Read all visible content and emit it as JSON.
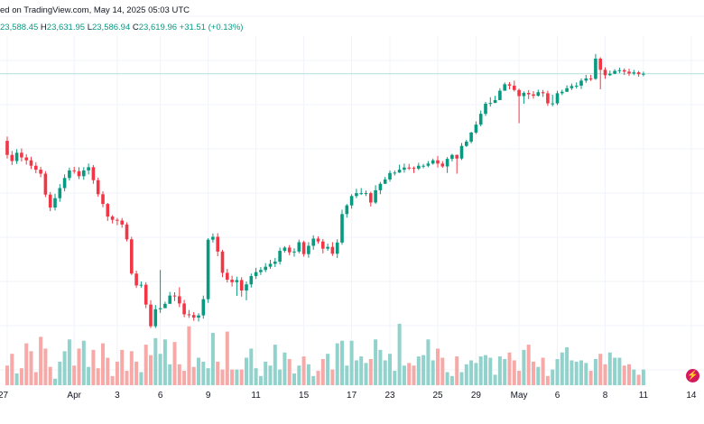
{
  "header": {
    "published": "ed on TradingView.com, May 14, 2025 05:03 UTC",
    "open_key": "",
    "open": "23,588.45",
    "high_key": "H",
    "high": "23,631.95",
    "low_key": "L",
    "low": "23,586.94",
    "close_key": "C",
    "close": "23,619.96",
    "change": "+31.51 (+0.13%)"
  },
  "colors": {
    "up": "#089981",
    "down": "#f23645",
    "up_volume": "#92d2cc",
    "down_volume": "#f7a9a7",
    "last_price_line": "#b2dfdb",
    "grid": "#f0f3fa"
  },
  "icons": {
    "fullscreen": "lightning-icon"
  },
  "chart_data": {
    "type": "candlestick",
    "grid": true,
    "x_ticks": [
      "27",
      "Apr",
      "3",
      "6",
      "9",
      "11",
      "15",
      "17",
      "23",
      "25",
      "29",
      "May",
      "6",
      "8",
      "11",
      "14"
    ],
    "candles": [
      [
        17.9,
        14.0,
        19.1,
        13.0
      ],
      [
        14.0,
        12.3,
        15.1,
        11.2
      ],
      [
        12.3,
        14.6,
        15.6,
        11.5
      ],
      [
        14.6,
        13.3,
        15.8,
        12.2
      ],
      [
        13.3,
        12.5,
        14.2,
        11.3
      ],
      [
        12.5,
        11.0,
        13.5,
        10.1
      ],
      [
        11.0,
        9.9,
        12.0,
        8.9
      ],
      [
        9.9,
        8.8,
        10.7,
        7.8
      ],
      [
        8.8,
        3.0,
        9.5,
        2.3
      ],
      [
        3.0,
        -0.6,
        3.7,
        -1.6
      ],
      [
        -0.6,
        2.0,
        3.2,
        -1.4
      ],
      [
        2.0,
        4.8,
        5.9,
        1.0
      ],
      [
        4.8,
        7.6,
        8.6,
        3.9
      ],
      [
        7.6,
        9.7,
        10.5,
        6.9
      ],
      [
        9.7,
        9.5,
        10.7,
        8.8
      ],
      [
        9.5,
        8.1,
        10.6,
        7.3
      ],
      [
        8.1,
        9.7,
        10.6,
        7.1
      ],
      [
        9.7,
        10.6,
        11.6,
        8.6
      ],
      [
        10.6,
        7.0,
        11.2,
        6.0
      ],
      [
        7.0,
        3.1,
        7.7,
        2.4
      ],
      [
        3.1,
        0.4,
        3.9,
        -0.5
      ],
      [
        0.4,
        -3.1,
        0.7,
        -4.3
      ],
      [
        -3.1,
        -4.0,
        -2.7,
        -5.0
      ],
      [
        -4.0,
        -4.2,
        -3.5,
        -5.5
      ],
      [
        -4.2,
        -5.3,
        -3.5,
        -6.2
      ],
      [
        -5.3,
        -9.4,
        -4.7,
        -10.0
      ],
      [
        -9.4,
        -18.9,
        -8.7,
        -19.3
      ],
      [
        -18.9,
        -22.2,
        -18.1,
        -22.9
      ],
      [
        -22.2,
        -22.0,
        -21.1,
        -22.8
      ],
      [
        -22.0,
        -27.5,
        -21.3,
        -28.5
      ],
      [
        -27.5,
        -33.5,
        -26.3,
        -34.0
      ],
      [
        -33.5,
        -28.8,
        -27.6,
        -34.0
      ],
      [
        -28.8,
        -28.5,
        -17.9,
        -29.8
      ],
      [
        -28.5,
        -27.3,
        -26.7,
        -28.1
      ],
      [
        -27.3,
        -25.0,
        -24.0,
        -26.3
      ],
      [
        -25.0,
        -25.2,
        -24.1,
        -26.5
      ],
      [
        -25.2,
        -27.2,
        -22.7,
        -28.2
      ],
      [
        -27.2,
        -30.2,
        -26.2,
        -31.0
      ],
      [
        -30.2,
        -30.4,
        -29.0,
        -31.2
      ],
      [
        -30.4,
        -31.1,
        -29.6,
        -32.0
      ],
      [
        -31.1,
        -30.5,
        -29.9,
        -32.2
      ],
      [
        -30.5,
        -26.0,
        -25.0,
        -31.4
      ],
      [
        -26.0,
        -9.5,
        -9.1,
        -27.0
      ],
      [
        -9.5,
        -8.7,
        -7.8,
        -10.3
      ],
      [
        -8.7,
        -12.8,
        -7.7,
        -14.1
      ],
      [
        -12.8,
        -18.7,
        -12.3,
        -19.9
      ],
      [
        -18.7,
        -20.6,
        -17.6,
        -21.4
      ],
      [
        -20.6,
        -21.3,
        -19.5,
        -22.5
      ],
      [
        -21.3,
        -20.7,
        -19.8,
        -25.1
      ],
      [
        -20.7,
        -23.6,
        -19.9,
        -25.3
      ],
      [
        -23.6,
        -21.9,
        -21.1,
        -26.3
      ],
      [
        -21.9,
        -19.6,
        -18.9,
        -22.8
      ],
      [
        -19.6,
        -18.5,
        -17.3,
        -20.4
      ],
      [
        -18.5,
        -17.9,
        -17.1,
        -19.3
      ],
      [
        -17.9,
        -17.0,
        -16.0,
        -18.5
      ],
      [
        -17.0,
        -16.2,
        -15.1,
        -17.6
      ],
      [
        -16.2,
        -15.6,
        -14.6,
        -17.1
      ],
      [
        -15.6,
        -12.6,
        -11.7,
        -16.4
      ],
      [
        -12.6,
        -11.7,
        -11.3,
        -13.1
      ],
      [
        -11.7,
        -13.0,
        -11.0,
        -13.8
      ],
      [
        -13.0,
        -12.8,
        -11.9,
        -14.2
      ],
      [
        -12.8,
        -10.2,
        -9.5,
        -13.3
      ],
      [
        -10.2,
        -13.5,
        -9.8,
        -14.2
      ],
      [
        -13.5,
        -11.2,
        -10.2,
        -14.5
      ],
      [
        -11.2,
        -9.2,
        -8.3,
        -12.3
      ],
      [
        -9.2,
        -10.0,
        -8.6,
        -10.6
      ],
      [
        -10.0,
        -12.0,
        -9.3,
        -13.3
      ],
      [
        -12.0,
        -11.5,
        -10.6,
        -12.6
      ],
      [
        -11.5,
        -13.4,
        -10.2,
        -14.0
      ],
      [
        -13.4,
        -10.3,
        -9.4,
        -14.6
      ],
      [
        -10.3,
        -2.4,
        -1.2,
        -10.9
      ],
      [
        -2.4,
        0.0,
        0.4,
        -3.4
      ],
      [
        0.0,
        2.6,
        3.1,
        -0.9
      ],
      [
        2.6,
        3.4,
        4.6,
        2.0
      ],
      [
        3.4,
        3.4,
        4.8,
        2.9
      ],
      [
        3.4,
        3.4,
        4.1,
        2.6
      ],
      [
        3.4,
        0.8,
        3.8,
        -0.3
      ],
      [
        0.8,
        4.2,
        5.6,
        0.4
      ],
      [
        4.2,
        6.0,
        6.5,
        3.1
      ],
      [
        6.0,
        7.2,
        7.9,
        5.9
      ],
      [
        7.2,
        9.0,
        9.7,
        6.6
      ],
      [
        9.0,
        9.1,
        9.7,
        8.3
      ],
      [
        9.1,
        9.9,
        11.3,
        9.0
      ],
      [
        9.9,
        10.5,
        11.6,
        9.1
      ],
      [
        10.5,
        10.4,
        11.5,
        9.8
      ],
      [
        10.4,
        10.2,
        10.8,
        9.0
      ],
      [
        10.2,
        11.0,
        11.8,
        9.8
      ],
      [
        11.0,
        11.0,
        11.5,
        10.3
      ],
      [
        11.0,
        11.6,
        12.3,
        10.6
      ],
      [
        11.6,
        12.5,
        13.0,
        11.3
      ],
      [
        12.5,
        11.6,
        13.7,
        10.5
      ],
      [
        11.6,
        10.8,
        12.3,
        10.4
      ],
      [
        10.8,
        12.9,
        13.4,
        9.0
      ],
      [
        12.9,
        14.0,
        14.3,
        12.2
      ],
      [
        14.0,
        13.0,
        14.1,
        8.8
      ],
      [
        13.0,
        16.5,
        17.3,
        12.6
      ],
      [
        16.5,
        17.7,
        18.2,
        16.2
      ],
      [
        17.7,
        20.2,
        20.4,
        17.2
      ],
      [
        20.2,
        22.4,
        23.3,
        19.8
      ],
      [
        22.4,
        25.4,
        26.3,
        21.9
      ],
      [
        25.4,
        28.2,
        28.7,
        24.8
      ],
      [
        28.2,
        28.4,
        30.0,
        27.4
      ],
      [
        28.4,
        29.2,
        30.4,
        28.5
      ],
      [
        29.2,
        31.8,
        32.5,
        29.2
      ],
      [
        31.8,
        33.6,
        34.1,
        31.8
      ],
      [
        33.6,
        33.2,
        34.2,
        32.2
      ],
      [
        33.2,
        32.0,
        34.6,
        31.6
      ],
      [
        32.0,
        30.3,
        32.4,
        22.8
      ],
      [
        30.3,
        31.2,
        31.6,
        28.2
      ],
      [
        31.2,
        30.8,
        32.0,
        29.5
      ],
      [
        30.8,
        30.4,
        31.7,
        29.6
      ],
      [
        30.4,
        31.4,
        32.1,
        30.2
      ],
      [
        31.4,
        31.1,
        32.0,
        30.1
      ],
      [
        31.1,
        28.3,
        31.8,
        27.6
      ],
      [
        28.3,
        28.3,
        30.7,
        27.5
      ],
      [
        28.3,
        31.1,
        31.8,
        27.8
      ],
      [
        31.1,
        31.5,
        32.1,
        30.6
      ],
      [
        31.5,
        32.5,
        33.3,
        31.5
      ],
      [
        32.5,
        33.1,
        33.8,
        32.0
      ],
      [
        33.1,
        33.2,
        34.1,
        32.4
      ],
      [
        33.2,
        34.6,
        35.2,
        32.3
      ],
      [
        34.6,
        35.2,
        36.2,
        34.0
      ],
      [
        35.2,
        35.1,
        36.2,
        34.5
      ],
      [
        35.1,
        40.7,
        42.0,
        34.8
      ],
      [
        40.7,
        37.6,
        41.1,
        32.2
      ],
      [
        37.6,
        36.1,
        38.3,
        35.1
      ],
      [
        36.1,
        36.5,
        37.4,
        35.9
      ],
      [
        36.5,
        37.3,
        37.8,
        36.4
      ],
      [
        37.3,
        37.5,
        38.2,
        36.7
      ],
      [
        37.5,
        37.1,
        38.0,
        36.2
      ],
      [
        37.1,
        36.6,
        37.9,
        35.9
      ],
      [
        36.6,
        36.9,
        37.6,
        36.1
      ],
      [
        36.9,
        36.4,
        37.3,
        35.7
      ],
      [
        36.4,
        36.5,
        37.1,
        35.8
      ]
    ],
    "volumes": [
      15,
      24,
      9,
      13,
      32,
      26,
      10,
      37,
      28,
      14,
      5,
      18,
      26,
      35,
      15,
      28,
      34,
      14,
      27,
      13,
      32,
      21,
      7,
      18,
      27,
      11,
      26,
      18,
      10,
      31,
      23,
      36,
      24,
      35,
      16,
      33,
      16,
      11,
      45,
      14,
      21,
      18,
      13,
      40,
      18,
      12,
      41,
      12,
      12,
      12,
      21,
      28,
      13,
      7,
      18,
      15,
      31,
      12,
      25,
      20,
      9,
      15,
      22,
      16,
      7,
      11,
      20,
      24,
      12,
      32,
      34,
      15,
      34,
      19,
      22,
      17,
      20,
      35,
      27,
      19,
      24,
      11,
      47,
      15,
      17,
      15,
      22,
      23,
      35,
      19,
      28,
      21,
      10,
      7,
      22,
      10,
      16,
      19,
      17,
      22,
      23,
      21,
      8,
      22,
      20,
      25,
      19,
      11,
      27,
      31,
      18,
      14,
      21,
      7,
      12,
      20,
      25,
      29,
      19,
      18,
      19,
      17,
      11,
      20,
      24,
      16,
      25,
      21,
      21,
      15,
      16,
      12,
      8,
      12,
      19,
      21
    ]
  }
}
